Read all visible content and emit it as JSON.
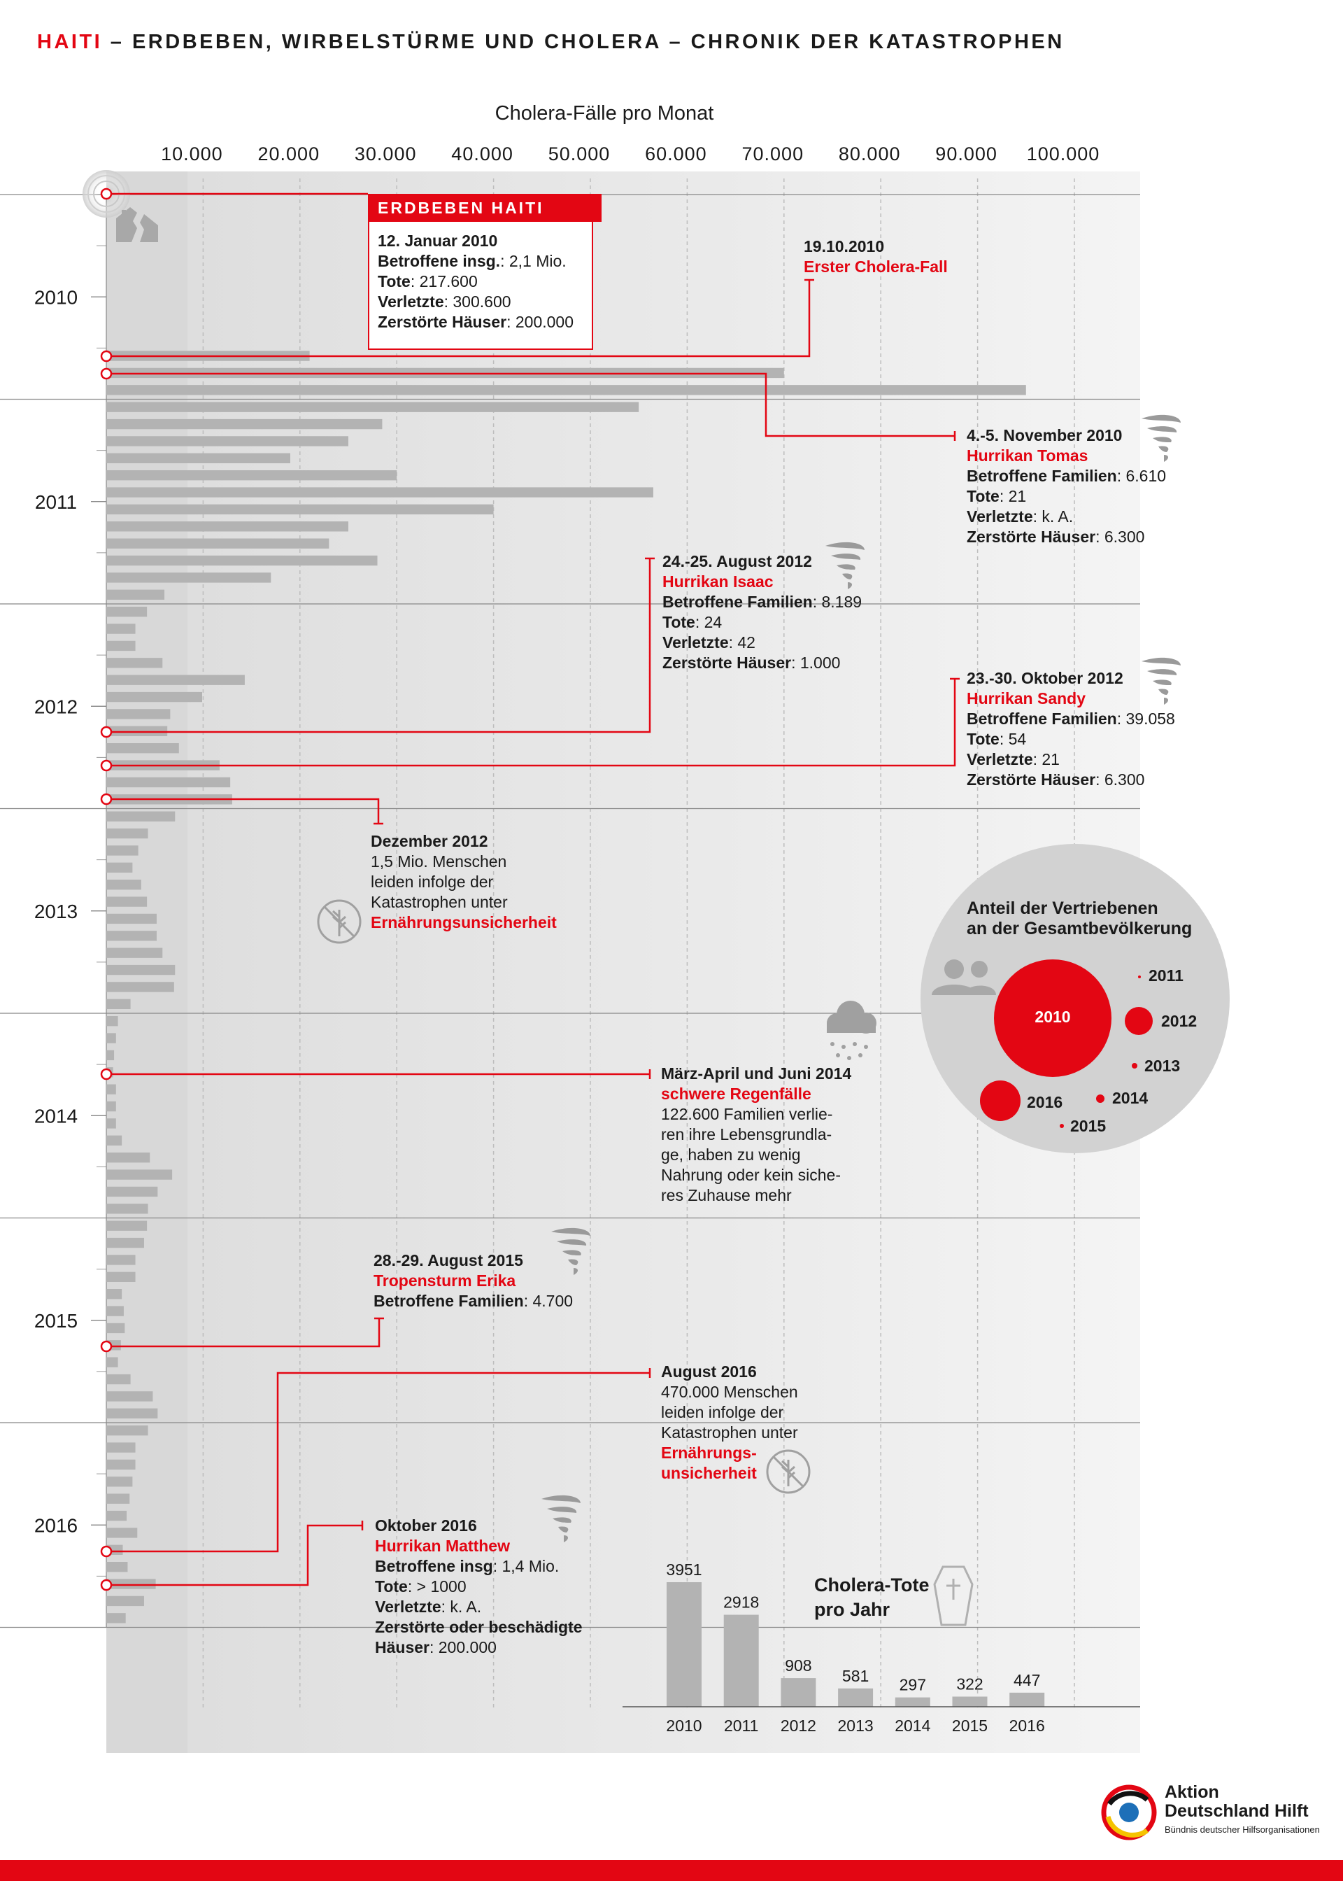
{
  "header": {
    "title_red": "HAITI",
    "title_rest": " – ERDBEBEN, WIRBELSTÜRME UND CHOLERA – CHRONIK DER KATASTROPHEN"
  },
  "colors": {
    "accent": "#e30613",
    "bar": "#b3b3b3",
    "panel": "#dadada"
  },
  "chart_data": [
    {
      "type": "bar",
      "orientation": "horizontal",
      "title": "Cholera-Fälle  pro Monat",
      "xticks": [
        "10.000",
        "20.000",
        "30.000",
        "40.000",
        "50.000",
        "60.000",
        "70.000",
        "80.000",
        "90.000",
        "100.000"
      ],
      "xlim": [
        0,
        105000
      ],
      "years": [
        "2010",
        "2011",
        "2012",
        "2013",
        "2014",
        "2015",
        "2016"
      ],
      "start_month": "2010-10",
      "values": [
        21000,
        70000,
        95000,
        55000,
        28500,
        25000,
        19000,
        30000,
        56500,
        40000,
        25000,
        23000,
        28000,
        17000,
        6000,
        4200,
        3000,
        3000,
        5800,
        14300,
        9900,
        6600,
        6300,
        7500,
        11700,
        12800,
        13000,
        7100,
        4300,
        3300,
        2700,
        3600,
        4200,
        5200,
        5200,
        5800,
        7100,
        7000,
        2500,
        1200,
        1000,
        800,
        700,
        1000,
        1000,
        1000,
        1600,
        4500,
        6800,
        5300,
        4300,
        4200,
        3900,
        3000,
        3000,
        1600,
        1800,
        1900,
        1500,
        1200,
        2500,
        4800,
        5300,
        4300,
        3000,
        3000,
        2700,
        2400,
        2100,
        3200,
        1700,
        2200,
        5100,
        3900,
        2000
      ]
    },
    {
      "type": "pie",
      "title": "Anteil der Vertriebenen an der Gesamtbevölkerung",
      "title_line1": "Anteil der Vertriebenen",
      "title_line2": "an der Gesamtbevölkerung",
      "labels": [
        "2010",
        "2011",
        "2012",
        "2013",
        "2014",
        "2015",
        "2016"
      ],
      "relative_size": [
        1.0,
        0.02,
        0.24,
        0.05,
        0.08,
        0.04,
        0.34
      ]
    },
    {
      "type": "bar",
      "title": "Cholera-Tote pro Jahr",
      "title_line1": "Cholera-Tote",
      "title_line2": "pro Jahr",
      "categories": [
        "2010",
        "2011",
        "2012",
        "2013",
        "2014",
        "2015",
        "2016"
      ],
      "values": [
        3951,
        2918,
        908,
        581,
        297,
        322,
        447
      ],
      "labels": [
        "3951",
        "2918",
        "908",
        "581",
        "297",
        "322",
        "447"
      ],
      "ylim": [
        0,
        4000
      ]
    }
  ],
  "events": {
    "earthquake": {
      "head": "ERDBEBEN HAITI",
      "date": "12. Januar 2010",
      "l1k": "Betroffene insg.",
      "l1v": ": 2,1 Mio.",
      "l2k": "Tote",
      "l2v": ": 217.600",
      "l3k": "Verletzte",
      "l3v": ": 300.600",
      "l4k": "Zerstörte Häuser",
      "l4v": ": 200.000"
    },
    "cholera": {
      "date": "19.10.2010",
      "name": "Erster Cholera-Fall"
    },
    "tomas": {
      "date": "4.-5. November 2010",
      "name": "Hurrikan Tomas",
      "l1k": "Betroffene Familien",
      "l1v": ": 6.610",
      "l2k": "Tote",
      "l2v": ": 21",
      "l3k": "Verletzte",
      "l3v": ": k. A.",
      "l4k": "Zerstörte Häuser",
      "l4v": ": 6.300"
    },
    "isaac": {
      "date": "24.-25. August 2012",
      "name": "Hurrikan Isaac",
      "l1k": "Betroffene Familien",
      "l1v": ": 8.189",
      "l2k": "Tote",
      "l2v": ": 24",
      "l3k": "Verletzte",
      "l3v": ": 42",
      "l4k": "Zerstörte Häuser",
      "l4v": ": 1.000"
    },
    "sandy": {
      "date": "23.-30. Oktober 2012",
      "name": "Hurrikan Sandy",
      "l1k": "Betroffene Familien",
      "l1v": ": 39.058",
      "l2k": "Tote",
      "l2v": ": 54",
      "l3k": "Verletzte",
      "l3v": ": 21",
      "l4k": "Zerstörte Häuser",
      "l4v": ": 6.300"
    },
    "dez2012": {
      "date": "Dezember 2012",
      "l1": "1,5 Mio. Menschen",
      "l2": "leiden infolge der",
      "l3": "Katastrophen unter",
      "l4": "Ernährungsunsicherheit"
    },
    "rain": {
      "date": "März-April und Juni 2014",
      "name": "schwere Regenfälle",
      "l1": "122.600 Familien verlie-",
      "l2": "ren ihre Lebensgrundla-",
      "l3": "ge, haben zu wenig",
      "l4": "Nahrung oder kein siche-",
      "l5": "res Zuhause mehr"
    },
    "erika": {
      "date": "28.-29. August 2015",
      "name": "Tropensturm Erika",
      "l1k": "Betroffene Familien",
      "l1v": ": 4.700"
    },
    "aug2016": {
      "date": "August 2016",
      "l1": "470.000 Menschen",
      "l2": "leiden infolge der",
      "l3": "Katastrophen unter",
      "l4": "Ernährungs-",
      "l5": "unsicherheit"
    },
    "matthew": {
      "date": "Oktober 2016",
      "name": "Hurrikan Matthew",
      "l1k": "Betroffene insg",
      "l1v": ": 1,4 Mio.",
      "l2k": "Tote",
      "l2v": ": > 1000",
      "l3k": "Verletzte",
      "l3v": ": k. A.",
      "l4": "Zerstörte oder beschädigte",
      "l5k": "Häuser",
      "l5v": ": 200.000"
    }
  },
  "logo": {
    "line1": "Aktion",
    "line2": "Deutschland Hilft",
    "sub": "Bündnis deutscher Hilfsorganisationen"
  }
}
